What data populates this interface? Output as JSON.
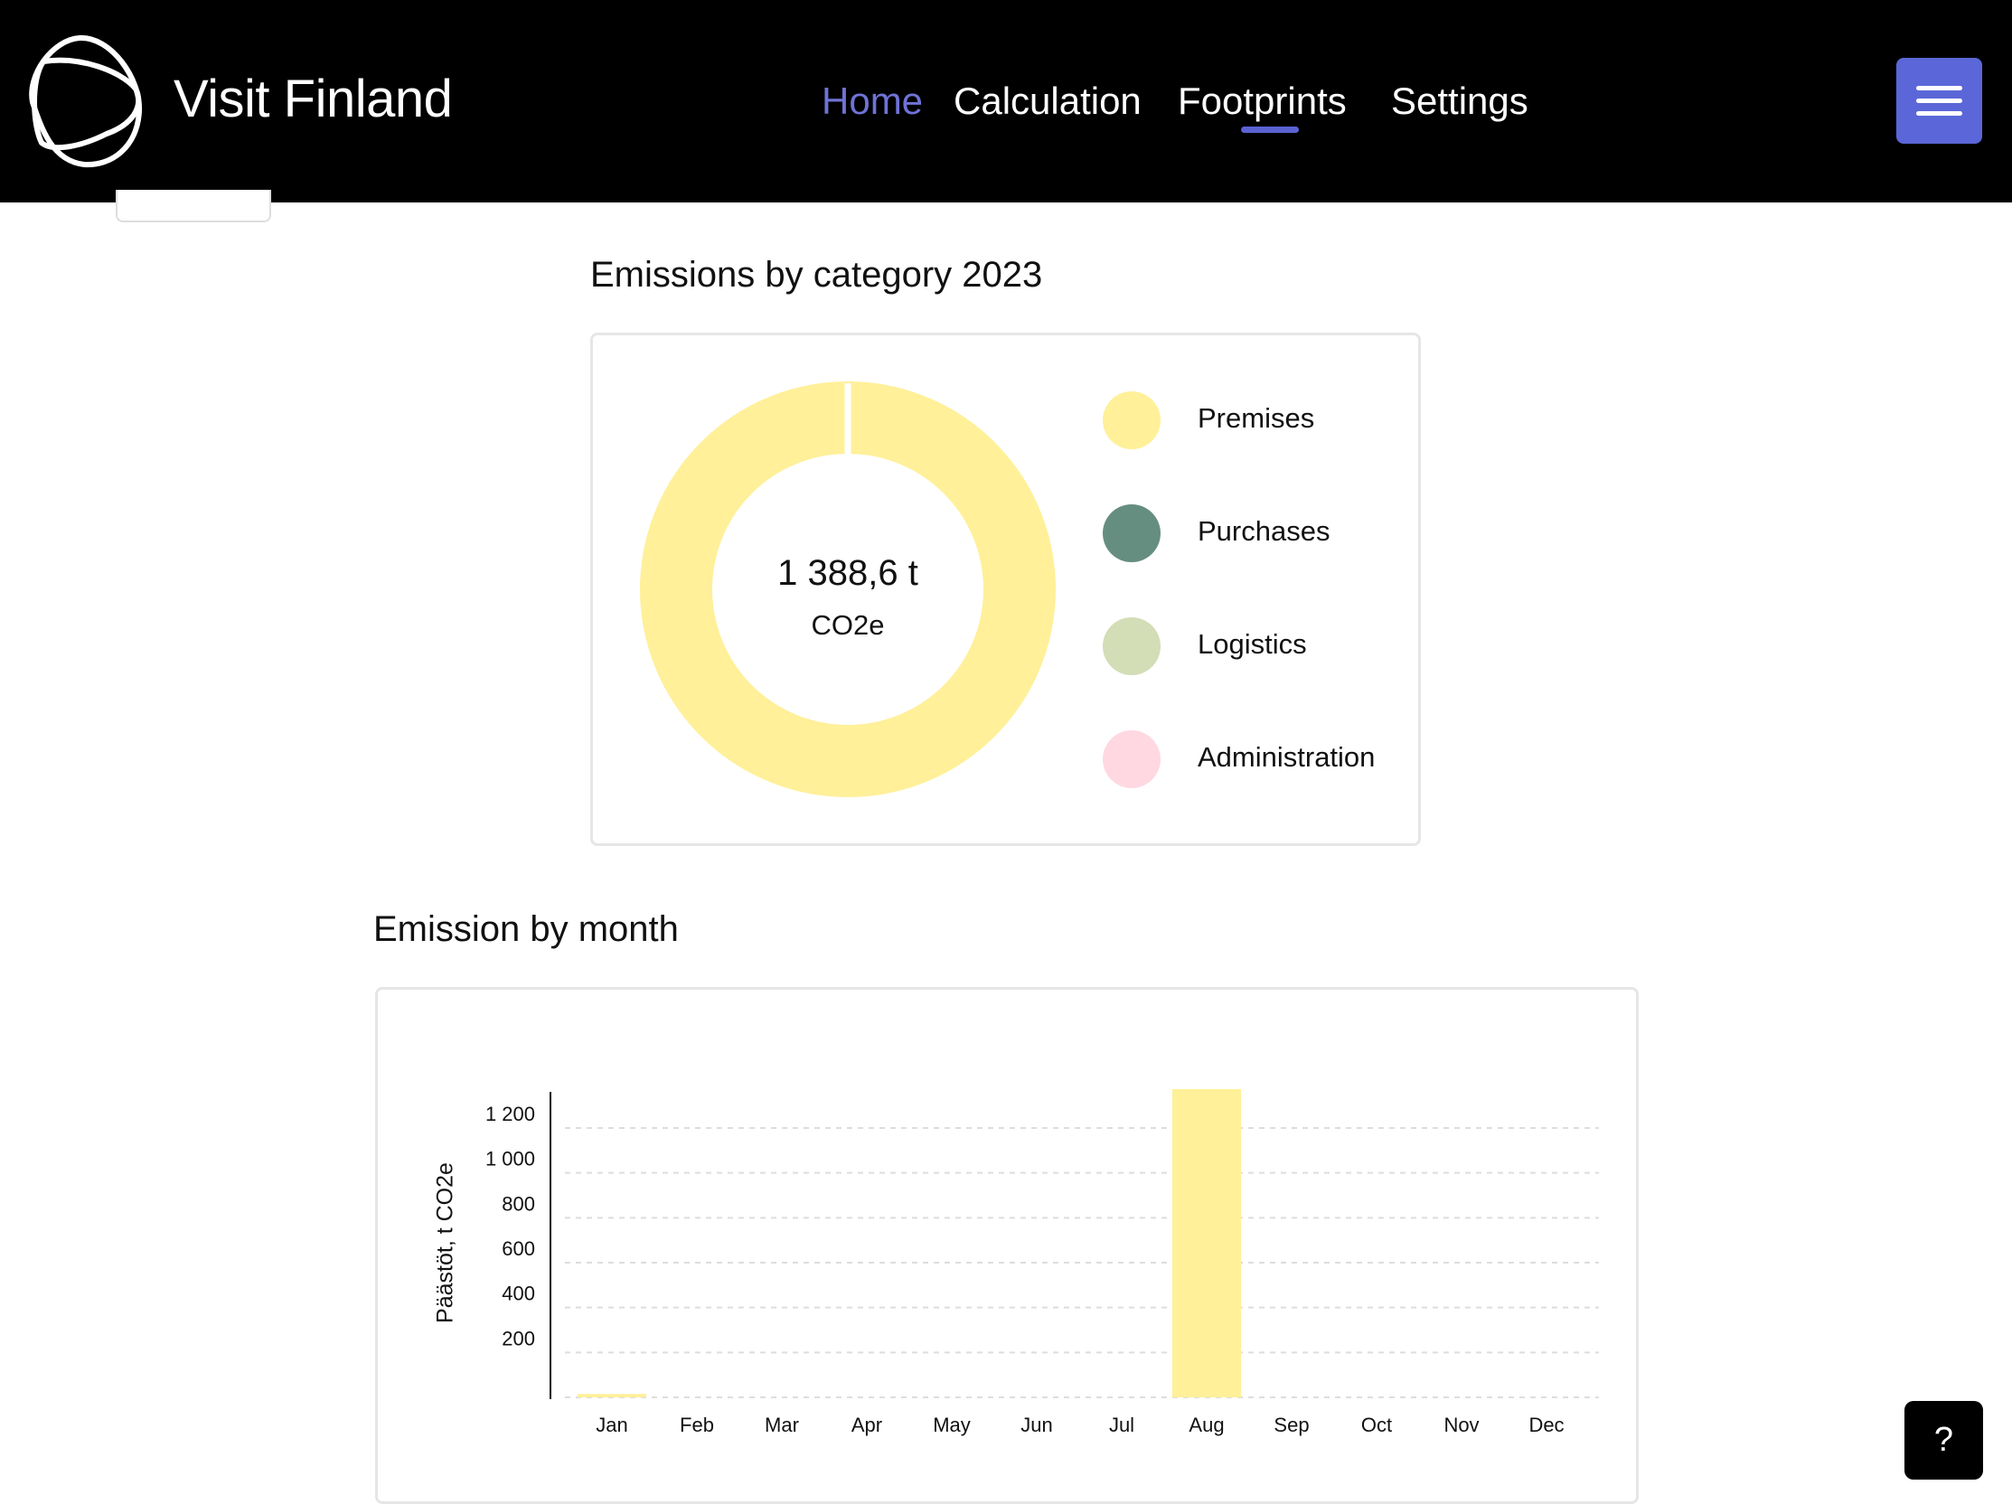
{
  "header": {
    "brand": "Visit Finland",
    "nav": [
      {
        "label": "Home",
        "active": true
      },
      {
        "label": "Calculation",
        "active": false
      },
      {
        "label": "Footprints",
        "active": false,
        "underlined": true
      },
      {
        "label": "Settings",
        "active": false
      }
    ],
    "menu_icon": "hamburger-icon",
    "accent": "#5b67d8"
  },
  "category_section": {
    "title": "Emissions by category 2023",
    "total_value": "1 388,6 t",
    "total_unit": "CO2e",
    "legend": [
      {
        "label": "Premises",
        "color": "#fff099"
      },
      {
        "label": "Purchases",
        "color": "#668e80"
      },
      {
        "label": "Logistics",
        "color": "#d3ddb6"
      },
      {
        "label": "Administration",
        "color": "#ffd8e2"
      }
    ]
  },
  "month_section": {
    "title": "Emission by month"
  },
  "chart_data": [
    {
      "type": "pie",
      "variant": "donut",
      "categories": [
        "Premises",
        "Purchases",
        "Logistics",
        "Administration"
      ],
      "values": [
        1388.6,
        0,
        0,
        0
      ],
      "colors": [
        "#fff099",
        "#668e80",
        "#d3ddb6",
        "#ffd8e2"
      ],
      "legend": "right"
    },
    {
      "type": "bar",
      "categories": [
        "Jan",
        "Feb",
        "Mar",
        "Apr",
        "May",
        "Jun",
        "Jul",
        "Aug",
        "Sep",
        "Oct",
        "Nov",
        "Dec"
      ],
      "values": [
        15,
        0,
        0,
        0,
        0,
        0,
        0,
        1373.6,
        0,
        0,
        0,
        0
      ],
      "ylabel": "Päästöt, t CO2e",
      "ylim": [
        0,
        1350
      ],
      "yticks": [
        200,
        400,
        600,
        800,
        1000,
        1200
      ],
      "ytick_labels": [
        "200",
        "400",
        "600",
        "800",
        "1 000",
        "1 200"
      ],
      "grid": true,
      "color": "#fff099"
    }
  ],
  "help": {
    "label": "?"
  }
}
